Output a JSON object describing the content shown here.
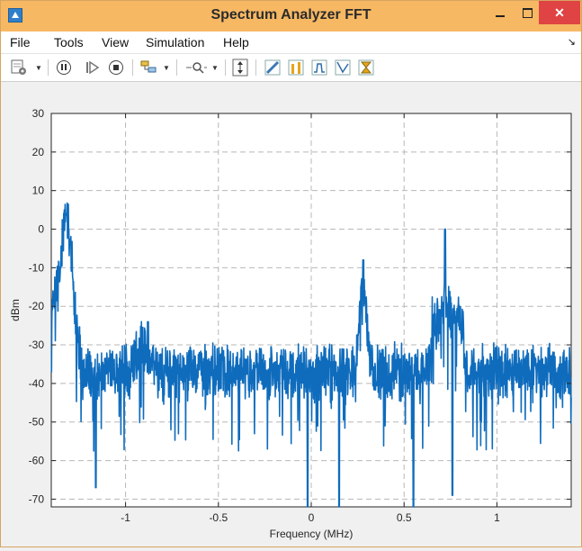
{
  "window": {
    "title": "Spectrum Analyzer FFT",
    "close_glyph": "✕"
  },
  "menu": {
    "items": [
      "File",
      "Tools",
      "View",
      "Simulation",
      "Help"
    ],
    "overflow_glyph": "↘"
  },
  "toolbar": {
    "icons": [
      "settings-icon",
      "pause-icon",
      "step-forward-icon",
      "stop-icon",
      "highlight-signal-icon",
      "zoom-icon",
      "autoscale-icon",
      "measurement-icon",
      "peak-finder-icon",
      "channel-measurement-icon",
      "distortion-icon",
      "ccdf-icon"
    ]
  },
  "colors": {
    "titlebar": "#f7b863",
    "trace": "#0f6cbd",
    "close": "#e04343"
  },
  "chart_data": {
    "type": "line",
    "xlabel": "Frequency (MHz)",
    "ylabel": "dBm",
    "xlim": [
      -1.4,
      1.4
    ],
    "ylim": [
      -72,
      30
    ],
    "xticks": [
      -1,
      -0.5,
      0,
      0.5,
      1
    ],
    "yticks": [
      30,
      20,
      10,
      0,
      -10,
      -20,
      -30,
      -40,
      -50,
      -60,
      -70
    ],
    "xticklabels": [
      "-1",
      "-0.5",
      "0",
      "0.5",
      "1"
    ],
    "yticklabels": [
      "30",
      "20",
      "10",
      "0",
      "-10",
      "-20",
      "-30",
      "-40",
      "-50",
      "-60",
      "-70"
    ],
    "grid": true,
    "series": [
      {
        "peaks": [
          {
            "x": -1.32,
            "y": 4
          },
          {
            "x": -0.88,
            "y": -24
          },
          {
            "x": 0.28,
            "y": -8
          },
          {
            "x": 0.72,
            "y": 0
          },
          {
            "x": -1.4,
            "y": -37
          }
        ],
        "noise_floor": -38,
        "deep_nulls": [
          {
            "x": -1.16,
            "y": -67
          },
          {
            "x": -0.02,
            "y": -72
          },
          {
            "x": 0.15,
            "y": -72
          },
          {
            "x": 0.55,
            "y": -72
          },
          {
            "x": 0.76,
            "y": -69
          }
        ]
      }
    ]
  }
}
